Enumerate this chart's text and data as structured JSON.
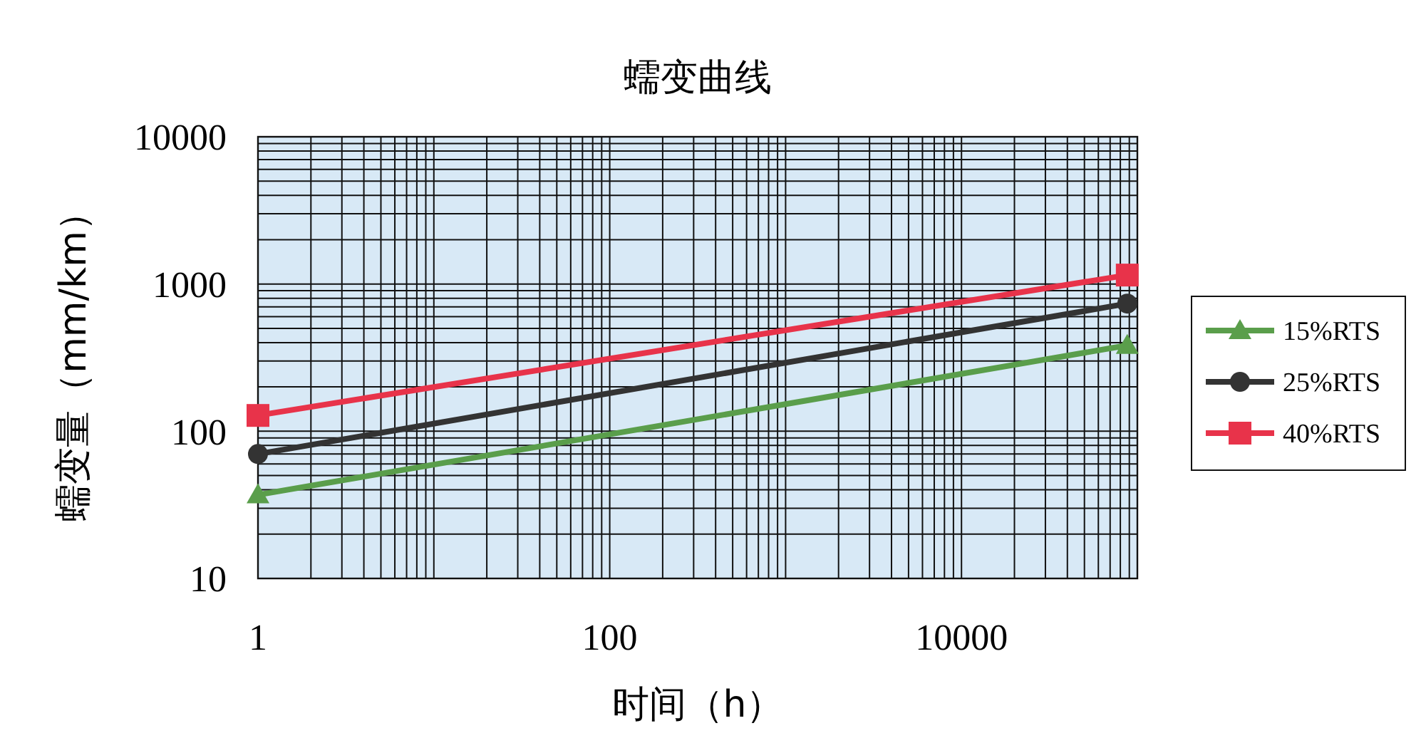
{
  "chart_data": {
    "type": "line",
    "title": "蠕变曲线",
    "xlabel": "时间（h）",
    "ylabel": "蠕变量（mm/km）",
    "log": "xy",
    "grid": true,
    "legend": "right",
    "xlim": [
      1,
      100000
    ],
    "ylim": [
      10,
      10000
    ],
    "xticks": [
      1,
      {
        "value": 2,
        "label": null
      },
      {
        "value": 3,
        "label": null
      },
      {
        "value": 4,
        "label": null
      },
      {
        "value": 5,
        "label": null
      },
      {
        "value": 6,
        "label": null
      },
      {
        "value": 7,
        "label": null
      },
      {
        "value": 8,
        "label": null
      },
      {
        "value": 9,
        "label": null
      },
      {
        "value": 10,
        "label": null
      },
      {
        "value": 20,
        "label": null
      },
      {
        "value": 30,
        "label": null
      },
      {
        "value": 40,
        "label": null
      },
      {
        "value": 50,
        "label": null
      },
      {
        "value": 60,
        "label": null
      },
      {
        "value": 70,
        "label": null
      },
      {
        "value": 80,
        "label": null
      },
      {
        "value": 90,
        "label": null
      },
      100,
      {
        "value": 200,
        "label": null
      },
      {
        "value": 300,
        "label": null
      },
      {
        "value": 400,
        "label": null
      },
      {
        "value": 500,
        "label": null
      },
      {
        "value": 600,
        "label": null
      },
      {
        "value": 700,
        "label": null
      },
      {
        "value": 800,
        "label": null
      },
      {
        "value": 900,
        "label": null
      },
      {
        "value": 1000,
        "label": null
      },
      {
        "value": 2000,
        "label": null
      },
      {
        "value": 3000,
        "label": null
      },
      {
        "value": 4000,
        "label": null
      },
      {
        "value": 5000,
        "label": null
      },
      {
        "value": 6000,
        "label": null
      },
      {
        "value": 7000,
        "label": null
      },
      {
        "value": 8000,
        "label": null
      },
      {
        "value": 9000,
        "label": null
      },
      10000,
      {
        "value": 20000,
        "label": null
      },
      {
        "value": 30000,
        "label": null
      },
      {
        "value": 40000,
        "label": null
      },
      {
        "value": 50000,
        "label": null
      },
      {
        "value": 60000,
        "label": null
      },
      {
        "value": 70000,
        "label": null
      },
      {
        "value": 80000,
        "label": null
      },
      {
        "value": 90000,
        "label": null
      },
      {
        "value": 100000,
        "label": null
      }
    ],
    "yticks": [
      10,
      {
        "value": 20,
        "label": null
      },
      {
        "value": 30,
        "label": null
      },
      {
        "value": 40,
        "label": null
      },
      {
        "value": 50,
        "label": null
      },
      {
        "value": 60,
        "label": null
      },
      {
        "value": 70,
        "label": null
      },
      {
        "value": 80,
        "label": null
      },
      {
        "value": 90,
        "label": null
      },
      100,
      {
        "value": 200,
        "label": null
      },
      {
        "value": 300,
        "label": null
      },
      {
        "value": 400,
        "label": null
      },
      {
        "value": 500,
        "label": null
      },
      {
        "value": 600,
        "label": null
      },
      {
        "value": 700,
        "label": null
      },
      {
        "value": 800,
        "label": null
      },
      {
        "value": 900,
        "label": null
      },
      1000,
      {
        "value": 2000,
        "label": null
      },
      {
        "value": 3000,
        "label": null
      },
      {
        "value": 4000,
        "label": null
      },
      {
        "value": 5000,
        "label": null
      },
      {
        "value": 6000,
        "label": null
      },
      {
        "value": 7000,
        "label": null
      },
      {
        "value": 8000,
        "label": null
      },
      {
        "value": 9000,
        "label": null
      },
      10000
    ],
    "x": [
      1,
      87600
    ],
    "series": [
      {
        "name": "15%RTS",
        "color": "#5a9e4b",
        "marker": "triangle",
        "values": [
          37,
          383
        ]
      },
      {
        "name": "25%RTS",
        "color": "#333333",
        "marker": "circle",
        "values": [
          70,
          736
        ]
      },
      {
        "name": "40%RTS",
        "color": "#e8334a",
        "marker": "square",
        "values": [
          128,
          1150
        ]
      }
    ]
  }
}
